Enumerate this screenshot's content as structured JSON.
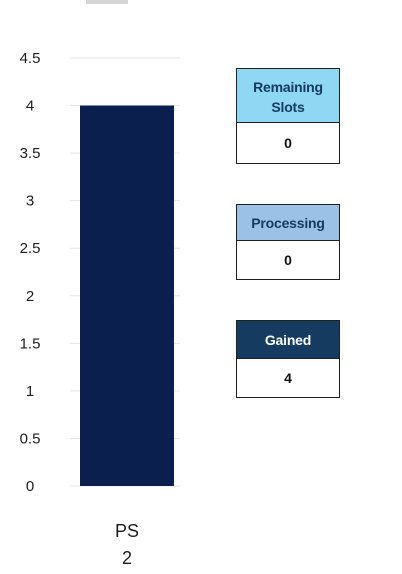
{
  "chart_data": {
    "type": "bar",
    "categories": [
      "PS\n2"
    ],
    "series": [
      {
        "values": [
          4
        ]
      }
    ],
    "ylim": [
      0,
      4.5
    ],
    "yticks": [
      0,
      0.5,
      1,
      1.5,
      2,
      2.5,
      3,
      3.5,
      4,
      4.5
    ],
    "grid": true
  },
  "colors": {
    "bar": "#0b1f4f",
    "remaining_header": "#8fd7f3",
    "processing_header": "#9bc2e6",
    "gained_header": "#163b61",
    "gained_header_text": "#ffffff",
    "gridline": "#e5e5e5"
  },
  "stats": {
    "remaining": {
      "label": "Remaining\nSlots",
      "value": "0"
    },
    "processing": {
      "label": "Processing",
      "value": "0"
    },
    "gained": {
      "label": "Gained",
      "value": "4"
    }
  }
}
